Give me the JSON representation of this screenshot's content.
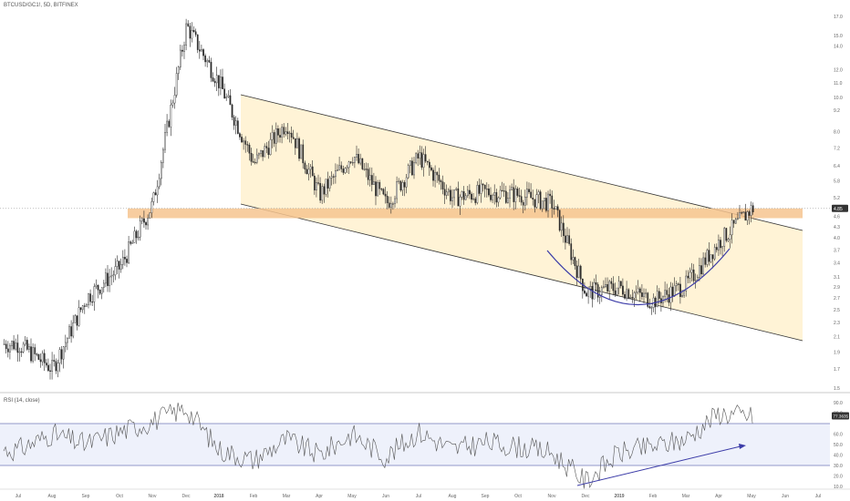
{
  "symbol_title": "BTCUSD/GC1!, 5D, BITFINEX",
  "rsi_title": "RSI (14, close)",
  "colors": {
    "candle": "#2a2a2a",
    "channel_fill": "#fff3d6",
    "support_band": "#f6c48f",
    "arc": "#3c3ca8",
    "rsi_line": "#555555",
    "rsi_band": "#eef1fb",
    "rsi_bound": "#7078b8",
    "rsi_trend": "#3c3ca8",
    "axis_text": "#666666",
    "last_price_bg": "#333333",
    "last_price_text": "#ffffff"
  },
  "chart_data": [
    {
      "type": "candlestick",
      "title": "BTCUSD/GC1!, 5D, BITFINEX",
      "scale": "log",
      "y_ticks": [
        17.0,
        15.0,
        14.0,
        12.0,
        11.0,
        10.0,
        9.2,
        8.0,
        7.2,
        6.4,
        5.8,
        5.2,
        4.6,
        4.3,
        4.0,
        3.7,
        3.4,
        3.1,
        2.9,
        2.7,
        2.5,
        2.3,
        2.1,
        1.9,
        1.7,
        1.5
      ],
      "x_ticks": [
        "Jul",
        "Aug",
        "Sep",
        "Oct",
        "Nov",
        "Dec",
        "2018",
        "Feb",
        "Mar",
        "Apr",
        "May",
        "Jun",
        "Jul",
        "Aug",
        "Sep",
        "Oct",
        "Nov",
        "Dec",
        "2019",
        "Feb",
        "Mar",
        "Apr",
        "May",
        "Jun",
        "Jul"
      ],
      "last_price_label": "4.85",
      "series_key_points": [
        {
          "x": "Jul",
          "y": 2.0
        },
        {
          "x": "Aug",
          "y": 1.7
        },
        {
          "x": "Sep",
          "y": 2.7
        },
        {
          "x": "Oct",
          "y": 3.3
        },
        {
          "x": "Nov",
          "y": 5.0
        },
        {
          "x": "Dec",
          "y": 16.0
        },
        {
          "x": "2018",
          "y": 11.0
        },
        {
          "x": "Feb",
          "y": 6.5
        },
        {
          "x": "Mar",
          "y": 8.5
        },
        {
          "x": "Apr",
          "y": 5.3
        },
        {
          "x": "May",
          "y": 6.9
        },
        {
          "x": "Jun",
          "y": 5.0
        },
        {
          "x": "Jul",
          "y": 6.8
        },
        {
          "x": "Aug",
          "y": 5.2
        },
        {
          "x": "Sep",
          "y": 5.4
        },
        {
          "x": "Oct",
          "y": 5.3
        },
        {
          "x": "Nov",
          "y": 5.0
        },
        {
          "x": "Dec",
          "y": 2.8
        },
        {
          "x": "2019",
          "y": 2.9
        },
        {
          "x": "Feb",
          "y": 2.65
        },
        {
          "x": "Mar",
          "y": 2.95
        },
        {
          "x": "Apr",
          "y": 3.9
        },
        {
          "x": "May",
          "y": 4.85
        }
      ],
      "annotations": {
        "support_band": [
          4.55,
          4.85
        ],
        "descending_channel": true,
        "rounding_bottom_arc": true
      }
    },
    {
      "type": "line",
      "title": "RSI (14, close)",
      "y_ticks": [
        90.0,
        80.0,
        60.0,
        50.0,
        40.0,
        30.0,
        20.0,
        10.0
      ],
      "upper_bound": 70,
      "lower_bound": 30,
      "last_value_label": "77.3635",
      "series_key_points": [
        {
          "x": "Jul",
          "y": 45
        },
        {
          "x": "Aug",
          "y": 60
        },
        {
          "x": "Sep",
          "y": 50
        },
        {
          "x": "Oct",
          "y": 62
        },
        {
          "x": "Nov",
          "y": 72
        },
        {
          "x": "Dec",
          "y": 85
        },
        {
          "x": "2018",
          "y": 45
        },
        {
          "x": "Feb",
          "y": 35
        },
        {
          "x": "Mar",
          "y": 55
        },
        {
          "x": "Apr",
          "y": 40
        },
        {
          "x": "May",
          "y": 60
        },
        {
          "x": "Jun",
          "y": 38
        },
        {
          "x": "Jul",
          "y": 62
        },
        {
          "x": "Aug",
          "y": 45
        },
        {
          "x": "Sep",
          "y": 52
        },
        {
          "x": "Oct",
          "y": 48
        },
        {
          "x": "Nov",
          "y": 42
        },
        {
          "x": "Dec",
          "y": 15
        },
        {
          "x": "2019",
          "y": 42
        },
        {
          "x": "Feb",
          "y": 48
        },
        {
          "x": "Mar",
          "y": 55
        },
        {
          "x": "Apr",
          "y": 80
        },
        {
          "x": "May",
          "y": 77
        }
      ]
    }
  ]
}
